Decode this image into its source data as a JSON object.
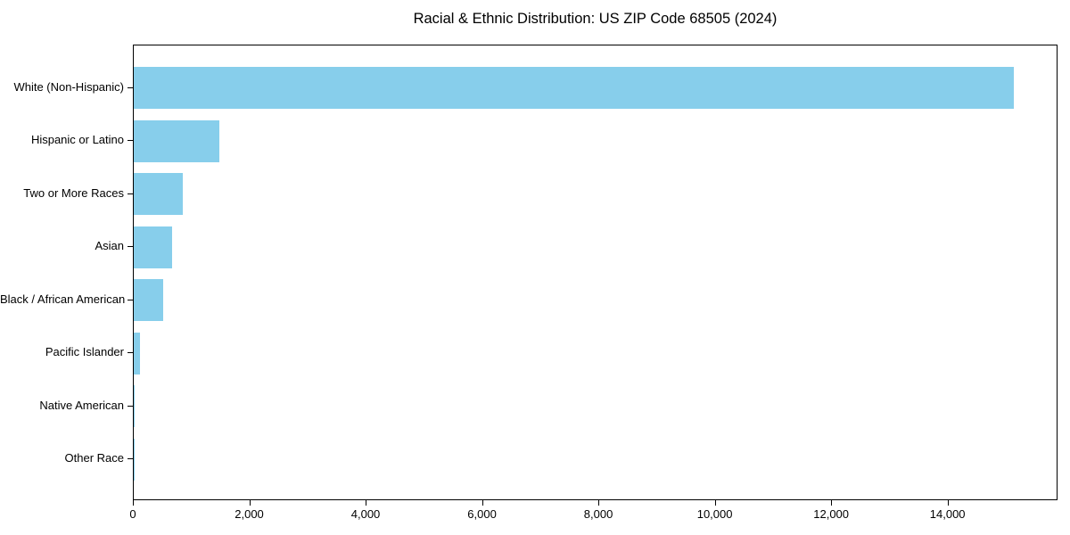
{
  "chart_data": {
    "type": "bar",
    "orientation": "horizontal",
    "title": "Racial & Ethnic Distribution: US ZIP Code 68505 (2024)",
    "categories": [
      "White (Non-Hispanic)",
      "Hispanic or Latino",
      "Two or More Races",
      "Asian",
      "Black / African American",
      "Pacific Islander",
      "Native American",
      "Other Race"
    ],
    "values": [
      15130,
      1470,
      840,
      660,
      500,
      100,
      15,
      10
    ],
    "xlabel": "",
    "ylabel": "",
    "xlim": [
      0,
      15890
    ],
    "x_ticks": [
      0,
      2000,
      4000,
      6000,
      8000,
      10000,
      12000,
      14000
    ],
    "x_tick_labels": [
      "0",
      "2,000",
      "4,000",
      "6,000",
      "8,000",
      "10,000",
      "12,000",
      "14,000"
    ],
    "bar_color": "#87CEEB",
    "background_color": "#FFFFFF",
    "spine_color": "#000000",
    "text_color": "#000000",
    "grid": false,
    "legend": null
  }
}
